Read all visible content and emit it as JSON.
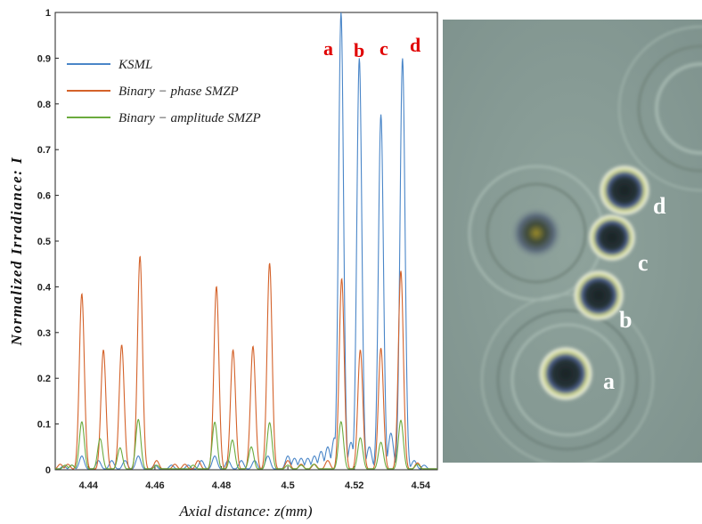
{
  "chart_data": {
    "type": "line",
    "ylabel": "Normalized Irradiance: I",
    "xlabel": "Axial distance: z(mm)",
    "xlim": [
      4.43,
      4.545
    ],
    "ylim": [
      0,
      1
    ],
    "xticks": [
      "4.44",
      "4.46",
      "4.48",
      "4.5",
      "4.52",
      "4.54"
    ],
    "yticks": [
      "0",
      "0.1",
      "0.2",
      "0.3",
      "0.4",
      "0.5",
      "0.6",
      "0.7",
      "0.8",
      "0.9",
      "1"
    ],
    "grid": false,
    "legend_position": "top-left",
    "series": [
      {
        "name": "KSML",
        "color": "#4a86c8",
        "peaks": [
          [
            4.4325,
            0.008
          ],
          [
            4.435,
            0.01
          ],
          [
            4.438,
            0.03
          ],
          [
            4.443,
            0.02
          ],
          [
            4.447,
            0.02
          ],
          [
            4.451,
            0.02
          ],
          [
            4.455,
            0.03
          ],
          [
            4.46,
            0.01
          ],
          [
            4.465,
            0.01
          ],
          [
            4.47,
            0.01
          ],
          [
            4.474,
            0.02
          ],
          [
            4.478,
            0.03
          ],
          [
            4.482,
            0.02
          ],
          [
            4.486,
            0.02
          ],
          [
            4.49,
            0.02
          ],
          [
            4.494,
            0.03
          ],
          [
            4.5,
            0.03
          ],
          [
            4.502,
            0.025
          ],
          [
            4.504,
            0.025
          ],
          [
            4.506,
            0.025
          ],
          [
            4.508,
            0.03
          ],
          [
            4.51,
            0.04
          ],
          [
            4.512,
            0.05
          ],
          [
            4.514,
            0.07
          ],
          [
            4.516,
            1.0
          ],
          [
            4.519,
            0.06
          ],
          [
            4.5215,
            0.9
          ],
          [
            4.5245,
            0.05
          ],
          [
            4.5275,
            0.05
          ],
          [
            4.528,
            0.777
          ],
          [
            4.531,
            0.08
          ],
          [
            4.5345,
            0.9
          ],
          [
            4.538,
            0.02
          ],
          [
            4.541,
            0.01
          ]
        ]
      },
      {
        "name": "Binary − phase SMZP",
        "color": "#d4622a",
        "peaks": [
          [
            4.4315,
            0.012
          ],
          [
            4.4338,
            0.012
          ],
          [
            4.438,
            0.385
          ],
          [
            4.4445,
            0.262
          ],
          [
            4.45,
            0.273
          ],
          [
            4.4555,
            0.467
          ],
          [
            4.4605,
            0.02
          ],
          [
            4.466,
            0.012
          ],
          [
            4.469,
            0.012
          ],
          [
            4.473,
            0.02
          ],
          [
            4.4785,
            0.401
          ],
          [
            4.4835,
            0.262
          ],
          [
            4.4895,
            0.27
          ],
          [
            4.4945,
            0.452
          ],
          [
            4.5,
            0.02
          ],
          [
            4.504,
            0.012
          ],
          [
            4.508,
            0.012
          ],
          [
            4.512,
            0.02
          ],
          [
            4.5162,
            0.418
          ],
          [
            4.5218,
            0.262
          ],
          [
            4.528,
            0.266
          ],
          [
            4.534,
            0.435
          ],
          [
            4.539,
            0.015
          ]
        ]
      },
      {
        "name": "Binary − amplitude SMZP",
        "color": "#6bab3e",
        "peaks": [
          [
            4.433,
            0.01
          ],
          [
            4.435,
            0.01
          ],
          [
            4.438,
            0.105
          ],
          [
            4.4435,
            0.068
          ],
          [
            4.4495,
            0.048
          ],
          [
            4.455,
            0.11
          ],
          [
            4.4605,
            0.01
          ],
          [
            4.4715,
            0.01
          ],
          [
            4.478,
            0.104
          ],
          [
            4.4833,
            0.065
          ],
          [
            4.489,
            0.05
          ],
          [
            4.4945,
            0.103
          ],
          [
            4.5,
            0.01
          ],
          [
            4.504,
            0.01
          ],
          [
            4.5078,
            0.012
          ],
          [
            4.516,
            0.105
          ],
          [
            4.5218,
            0.07
          ],
          [
            4.528,
            0.06
          ],
          [
            4.534,
            0.108
          ],
          [
            4.539,
            0.012
          ]
        ]
      }
    ],
    "annotations": [
      "a",
      "b",
      "c",
      "d"
    ]
  },
  "photo": {
    "labels": [
      "a",
      "b",
      "c",
      "d"
    ]
  }
}
